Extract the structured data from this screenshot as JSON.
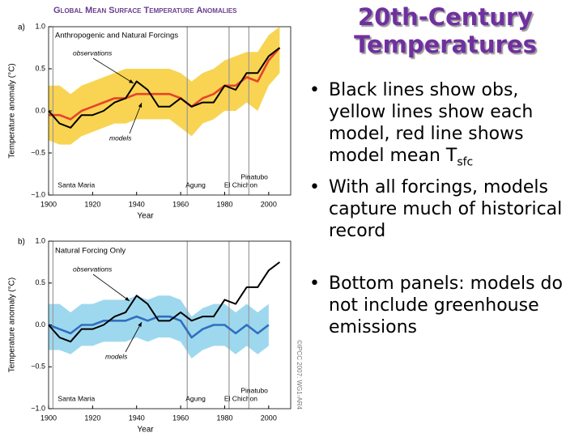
{
  "slide": {
    "title": "20th-Century Temperatures",
    "bullets": [
      {
        "text": "Black lines show obs, yellow lines show each model, red line shows model mean T",
        "sub": "sfc"
      },
      {
        "text": "With all forcings, models capture much of historical record"
      },
      {
        "text": "Bottom panels: models do not include greenhouse emissions"
      }
    ],
    "credit": "©IPCC 2007: WG1-AR4"
  },
  "chart_data": [
    {
      "type": "line",
      "title": "Global Mean Surface Temperature Anomalies",
      "panel": "a)",
      "subtitle": "Anthropogenic and Natural Forcings",
      "xlabel": "Year",
      "ylabel": "Temperature anomaly (°C)",
      "x": [
        1900,
        1905,
        1910,
        1915,
        1920,
        1925,
        1930,
        1935,
        1940,
        1945,
        1950,
        1955,
        1960,
        1965,
        1970,
        1975,
        1980,
        1985,
        1990,
        1995,
        2000,
        2005
      ],
      "series": [
        {
          "name": "models",
          "color": "#e8432a",
          "band_color": "#f5c518",
          "values": [
            -0.05,
            -0.05,
            -0.1,
            0.0,
            0.05,
            0.1,
            0.15,
            0.15,
            0.2,
            0.2,
            0.2,
            0.2,
            0.15,
            0.05,
            0.15,
            0.2,
            0.3,
            0.3,
            0.4,
            0.35,
            0.6,
            0.75
          ],
          "lower": [
            -0.35,
            -0.4,
            -0.4,
            -0.3,
            -0.25,
            -0.2,
            -0.15,
            -0.15,
            -0.1,
            -0.1,
            -0.1,
            -0.1,
            -0.2,
            -0.3,
            -0.15,
            -0.1,
            0.0,
            0.0,
            0.1,
            0.0,
            0.3,
            0.45
          ],
          "upper": [
            0.3,
            0.3,
            0.2,
            0.3,
            0.35,
            0.4,
            0.45,
            0.5,
            0.5,
            0.5,
            0.5,
            0.5,
            0.45,
            0.35,
            0.45,
            0.5,
            0.6,
            0.65,
            0.7,
            0.7,
            0.9,
            1.0
          ]
        },
        {
          "name": "observations",
          "color": "#000000",
          "values": [
            0.0,
            -0.15,
            -0.2,
            -0.05,
            -0.05,
            0.0,
            0.1,
            0.15,
            0.35,
            0.25,
            0.05,
            0.05,
            0.15,
            0.05,
            0.1,
            0.1,
            0.3,
            0.25,
            0.45,
            0.45,
            0.65,
            0.75
          ]
        }
      ],
      "eruptions": [
        {
          "label": "Santa Maria",
          "year": 1902
        },
        {
          "label": "Agung",
          "year": 1963
        },
        {
          "label": "El Chichon",
          "year": 1982
        },
        {
          "label": "Pinatubo",
          "year": 1991
        }
      ],
      "xlim": [
        1900,
        2010
      ],
      "xticks": [
        1900,
        1920,
        1940,
        1960,
        1980,
        2000
      ],
      "ylim": [
        -1,
        1
      ],
      "yticks": [
        {
          "value": 1,
          "label": "1.0"
        },
        {
          "value": 0.5,
          "label": "0.5"
        },
        {
          "value": 0,
          "label": "0.0"
        },
        {
          "value": -0.5,
          "label": "−0.5"
        },
        {
          "value": -1,
          "label": "−1.0"
        }
      ]
    },
    {
      "type": "line",
      "panel": "b)",
      "subtitle": "Natural Forcing Only",
      "xlabel": "Year",
      "ylabel": "Temperature anomaly (°C)",
      "x": [
        1900,
        1905,
        1910,
        1915,
        1920,
        1925,
        1930,
        1935,
        1940,
        1945,
        1950,
        1955,
        1960,
        1965,
        1970,
        1975,
        1980,
        1985,
        1990,
        1995,
        2000,
        2005
      ],
      "series": [
        {
          "name": "models",
          "color": "#2f6fc0",
          "band_color": "#7ecbe8",
          "values": [
            0.0,
            -0.05,
            -0.1,
            0.0,
            0.0,
            0.05,
            0.05,
            0.05,
            0.1,
            0.05,
            0.1,
            0.1,
            0.05,
            -0.15,
            -0.05,
            0.0,
            0.0,
            -0.1,
            0.0,
            -0.1,
            0.0,
            null
          ],
          "lower": [
            -0.3,
            -0.3,
            -0.35,
            -0.25,
            -0.25,
            -0.2,
            -0.2,
            -0.2,
            -0.15,
            -0.2,
            -0.15,
            -0.15,
            -0.2,
            -0.4,
            -0.3,
            -0.25,
            -0.25,
            -0.35,
            -0.25,
            -0.35,
            -0.25,
            null
          ],
          "upper": [
            0.25,
            0.25,
            0.15,
            0.25,
            0.25,
            0.3,
            0.3,
            0.3,
            0.35,
            0.3,
            0.35,
            0.35,
            0.3,
            0.1,
            0.2,
            0.25,
            0.25,
            0.15,
            0.25,
            0.15,
            0.25,
            null
          ]
        },
        {
          "name": "observations",
          "color": "#000000",
          "values": [
            0.0,
            -0.15,
            -0.2,
            -0.05,
            -0.05,
            0.0,
            0.1,
            0.15,
            0.35,
            0.25,
            0.05,
            0.05,
            0.15,
            0.05,
            0.1,
            0.1,
            0.3,
            0.25,
            0.45,
            0.45,
            0.65,
            0.75
          ]
        }
      ],
      "eruptions": [
        {
          "label": "Santa Maria",
          "year": 1902
        },
        {
          "label": "Agung",
          "year": 1963
        },
        {
          "label": "El Chichon",
          "year": 1982
        },
        {
          "label": "Pinatubo",
          "year": 1991
        }
      ],
      "xlim": [
        1900,
        2010
      ],
      "xticks": [
        1900,
        1920,
        1940,
        1960,
        1980,
        2000
      ],
      "ylim": [
        -1,
        1
      ],
      "yticks": [
        {
          "value": 1,
          "label": "1.0"
        },
        {
          "value": 0.5,
          "label": "0.5"
        },
        {
          "value": 0,
          "label": "0.0"
        },
        {
          "value": -0.5,
          "label": "−0.5"
        },
        {
          "value": -1,
          "label": "−1.0"
        }
      ]
    }
  ]
}
